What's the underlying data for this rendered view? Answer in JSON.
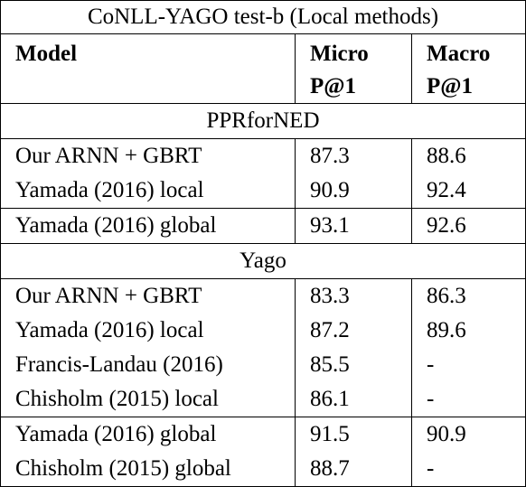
{
  "table": {
    "caption": "CoNLL-YAGO test-b (Local methods)",
    "headers": {
      "model": "Model",
      "micro_line1": "Micro",
      "micro_line2": "P@1",
      "macro_line1": "Macro",
      "macro_line2": "P@1"
    },
    "sections": [
      {
        "title": "PPRforNED",
        "groups": [
          [
            {
              "model": "Our ARNN + GBRT",
              "micro": "87.3",
              "macro": "88.6"
            },
            {
              "model": "Yamada (2016) local",
              "micro": "90.9",
              "macro": "92.4"
            }
          ],
          [
            {
              "model": "Yamada (2016) global",
              "micro": "93.1",
              "macro": "92.6"
            }
          ]
        ]
      },
      {
        "title": "Yago",
        "groups": [
          [
            {
              "model": "Our ARNN + GBRT",
              "micro": "83.3",
              "macro": "86.3"
            },
            {
              "model": "Yamada (2016) local",
              "micro": "87.2",
              "macro": "89.6"
            },
            {
              "model": "Francis-Landau (2016)",
              "micro": "85.5",
              "macro": "-"
            },
            {
              "model": "Chisholm (2015) local",
              "micro": "86.1",
              "macro": "-"
            }
          ],
          [
            {
              "model": "Yamada (2016) global",
              "micro": "91.5",
              "macro": "90.9"
            },
            {
              "model": "Chisholm (2015) global",
              "micro": "88.7",
              "macro": "-"
            }
          ]
        ]
      }
    ]
  }
}
